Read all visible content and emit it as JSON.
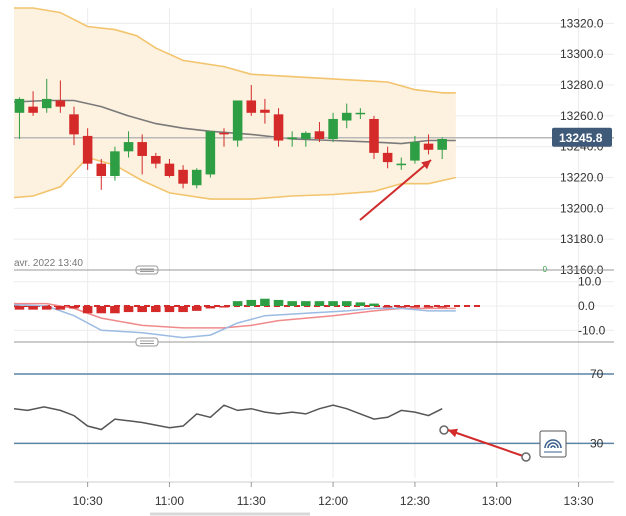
{
  "colors": {
    "up": "#2e9e44",
    "down": "#d42a2a",
    "band_fill": "#fdf1df",
    "band_line": "#f2c46d",
    "mid_line": "#7a7a7a",
    "price_line": "#b9b9b9",
    "price_badge": "#3f5a78",
    "macd_line": "#9bbbe3",
    "signal_line": "#f08a8a",
    "rsi_line": "#555555",
    "rsi_level": "#5b84a5",
    "annotation": "#d12b2b",
    "grid": "#ececec",
    "axis_text": "#333333"
  },
  "header": {
    "date_label": "avr. 2022 13:40"
  },
  "current_price": {
    "label": "13245.8",
    "value": 13245.8
  },
  "corner_marker": "-0-",
  "icons": {
    "drawing_tool": "rainbow-drawing-icon",
    "collapse_price": "collapse-handle-icon",
    "collapse_macd": "collapse-handle-icon"
  },
  "chart_data": [
    {
      "type": "candlestick",
      "panel": "price",
      "x_ticks": [
        "10:30",
        "11:00",
        "11:30",
        "12:00",
        "12:30",
        "13:00",
        "13:30"
      ],
      "x_tick_minutes": [
        630,
        660,
        690,
        720,
        750,
        780,
        810
      ],
      "xlim_minutes": [
        603,
        823
      ],
      "ylim": [
        13160,
        13330
      ],
      "y_ticks": [
        13160,
        13180,
        13200,
        13220,
        13240,
        13260,
        13280,
        13300,
        13320
      ],
      "y_tick_labels": [
        "13160.0",
        "13180.0",
        "13200.0",
        "13220.0",
        "13240.0",
        "13260.0",
        "13280.0",
        "13300.0",
        "13320.0"
      ],
      "candles": [
        {
          "t": 605,
          "o": 13262,
          "h": 13272,
          "l": 13245,
          "c": 13271
        },
        {
          "t": 610,
          "o": 13266,
          "h": 13276,
          "l": 13260,
          "c": 13262
        },
        {
          "t": 615,
          "o": 13265,
          "h": 13284,
          "l": 13262,
          "c": 13271
        },
        {
          "t": 620,
          "o": 13270,
          "h": 13283,
          "l": 13262,
          "c": 13266
        },
        {
          "t": 625,
          "o": 13261,
          "h": 13266,
          "l": 13241,
          "c": 13248
        },
        {
          "t": 630,
          "o": 13247,
          "h": 13252,
          "l": 13225,
          "c": 13229
        },
        {
          "t": 635,
          "o": 13229,
          "h": 13232,
          "l": 13212,
          "c": 13221
        },
        {
          "t": 640,
          "o": 13221,
          "h": 13240,
          "l": 13218,
          "c": 13237
        },
        {
          "t": 645,
          "o": 13237,
          "h": 13250,
          "l": 13233,
          "c": 13243
        },
        {
          "t": 650,
          "o": 13243,
          "h": 13248,
          "l": 13222,
          "c": 13234
        },
        {
          "t": 655,
          "o": 13234,
          "h": 13236,
          "l": 13226,
          "c": 13229
        },
        {
          "t": 660,
          "o": 13229,
          "h": 13232,
          "l": 13220,
          "c": 13221
        },
        {
          "t": 665,
          "o": 13225,
          "h": 13228,
          "l": 13213,
          "c": 13216
        },
        {
          "t": 670,
          "o": 13215,
          "h": 13226,
          "l": 13213,
          "c": 13225
        },
        {
          "t": 675,
          "o": 13222,
          "h": 13250,
          "l": 13220,
          "c": 13250
        },
        {
          "t": 680,
          "o": 13249,
          "h": 13252,
          "l": 13240,
          "c": 13248
        },
        {
          "t": 685,
          "o": 13244,
          "h": 13270,
          "l": 13240,
          "c": 13270
        },
        {
          "t": 690,
          "o": 13270,
          "h": 13280,
          "l": 13260,
          "c": 13262
        },
        {
          "t": 695,
          "o": 13264,
          "h": 13271,
          "l": 13255,
          "c": 13262
        },
        {
          "t": 700,
          "o": 13261,
          "h": 13265,
          "l": 13240,
          "c": 13244
        },
        {
          "t": 705,
          "o": 13245,
          "h": 13250,
          "l": 13240,
          "c": 13246
        },
        {
          "t": 710,
          "o": 13245,
          "h": 13250,
          "l": 13240,
          "c": 13249
        },
        {
          "t": 715,
          "o": 13250,
          "h": 13256,
          "l": 13243,
          "c": 13245
        },
        {
          "t": 720,
          "o": 13245,
          "h": 13262,
          "l": 13243,
          "c": 13258
        },
        {
          "t": 725,
          "o": 13257,
          "h": 13268,
          "l": 13252,
          "c": 13262
        },
        {
          "t": 730,
          "o": 13262,
          "h": 13265,
          "l": 13258,
          "c": 13262
        },
        {
          "t": 735,
          "o": 13258,
          "h": 13260,
          "l": 13232,
          "c": 13236
        },
        {
          "t": 740,
          "o": 13236,
          "h": 13240,
          "l": 13226,
          "c": 13230
        },
        {
          "t": 745,
          "o": 13228,
          "h": 13233,
          "l": 13225,
          "c": 13229
        },
        {
          "t": 750,
          "o": 13231,
          "h": 13247,
          "l": 13229,
          "c": 13243
        },
        {
          "t": 755,
          "o": 13242,
          "h": 13248,
          "l": 13235,
          "c": 13238
        },
        {
          "t": 760,
          "o": 13238,
          "h": 13246,
          "l": 13232,
          "c": 13245
        }
      ],
      "bollinger_upper": [
        [
          603,
          13330
        ],
        [
          610,
          13330
        ],
        [
          620,
          13327
        ],
        [
          630,
          13318
        ],
        [
          640,
          13316
        ],
        [
          648,
          13312
        ],
        [
          655,
          13304
        ],
        [
          665,
          13296
        ],
        [
          680,
          13292
        ],
        [
          690,
          13287
        ],
        [
          700,
          13286
        ],
        [
          720,
          13284
        ],
        [
          740,
          13282
        ],
        [
          750,
          13277
        ],
        [
          760,
          13275
        ],
        [
          765,
          13275
        ]
      ],
      "bollinger_middle": [
        [
          603,
          13269
        ],
        [
          615,
          13270
        ],
        [
          625,
          13270
        ],
        [
          635,
          13266
        ],
        [
          645,
          13260
        ],
        [
          655,
          13255
        ],
        [
          665,
          13252
        ],
        [
          675,
          13250
        ],
        [
          690,
          13248
        ],
        [
          705,
          13245
        ],
        [
          720,
          13244
        ],
        [
          735,
          13243
        ],
        [
          745,
          13242
        ],
        [
          755,
          13244
        ],
        [
          765,
          13244
        ]
      ],
      "bollinger_lower": [
        [
          603,
          13207
        ],
        [
          610,
          13208
        ],
        [
          620,
          13214
        ],
        [
          630,
          13233
        ],
        [
          640,
          13228
        ],
        [
          650,
          13218
        ],
        [
          660,
          13210
        ],
        [
          675,
          13206
        ],
        [
          690,
          13206
        ],
        [
          705,
          13208
        ],
        [
          720,
          13209
        ],
        [
          735,
          13211
        ],
        [
          745,
          13216
        ],
        [
          755,
          13216
        ],
        [
          765,
          13220
        ]
      ],
      "current_price": 13245.8
    },
    {
      "type": "macd",
      "panel": "macd",
      "ylim": [
        -14,
        14
      ],
      "y_ticks": [
        10,
        0,
        -10
      ],
      "y_tick_labels": [
        "10.0",
        "0.0",
        "-10.0"
      ],
      "histogram": [
        {
          "t": 605,
          "v": -1.5
        },
        {
          "t": 610,
          "v": -1.5
        },
        {
          "t": 615,
          "v": -1.5
        },
        {
          "t": 620,
          "v": -1.5
        },
        {
          "t": 625,
          "v": -1
        },
        {
          "t": 630,
          "v": -3
        },
        {
          "t": 635,
          "v": -3
        },
        {
          "t": 640,
          "v": -3
        },
        {
          "t": 645,
          "v": -2.5
        },
        {
          "t": 650,
          "v": -2.5
        },
        {
          "t": 655,
          "v": -2.5
        },
        {
          "t": 660,
          "v": -2.5
        },
        {
          "t": 665,
          "v": -2.5
        },
        {
          "t": 670,
          "v": -2
        },
        {
          "t": 675,
          "v": -1
        },
        {
          "t": 680,
          "v": -0.5
        },
        {
          "t": 685,
          "v": 2
        },
        {
          "t": 690,
          "v": 2.5
        },
        {
          "t": 695,
          "v": 3
        },
        {
          "t": 700,
          "v": 2.5
        },
        {
          "t": 705,
          "v": 2
        },
        {
          "t": 710,
          "v": 2
        },
        {
          "t": 715,
          "v": 2
        },
        {
          "t": 720,
          "v": 2
        },
        {
          "t": 725,
          "v": 2
        },
        {
          "t": 730,
          "v": 1.5
        },
        {
          "t": 735,
          "v": 1
        },
        {
          "t": 740,
          "v": -0.5
        },
        {
          "t": 745,
          "v": -0.5
        },
        {
          "t": 750,
          "v": -0.5
        },
        {
          "t": 755,
          "v": -0.5
        },
        {
          "t": 760,
          "v": -0.5
        }
      ],
      "macd_line": [
        [
          603,
          0.5
        ],
        [
          615,
          0
        ],
        [
          625,
          -4
        ],
        [
          635,
          -10
        ],
        [
          650,
          -11
        ],
        [
          665,
          -13
        ],
        [
          675,
          -12
        ],
        [
          685,
          -7
        ],
        [
          695,
          -4
        ],
        [
          710,
          -3
        ],
        [
          725,
          -2
        ],
        [
          735,
          -1
        ],
        [
          745,
          -1
        ],
        [
          755,
          -2
        ],
        [
          765,
          -2
        ]
      ],
      "signal_line": [
        [
          603,
          1
        ],
        [
          615,
          1
        ],
        [
          625,
          -1
        ],
        [
          635,
          -5
        ],
        [
          650,
          -8
        ],
        [
          665,
          -9
        ],
        [
          680,
          -9
        ],
        [
          690,
          -8
        ],
        [
          700,
          -6
        ],
        [
          720,
          -4
        ],
        [
          735,
          -2
        ],
        [
          745,
          -1
        ],
        [
          755,
          -1
        ],
        [
          765,
          -1
        ]
      ]
    },
    {
      "type": "line",
      "panel": "rsi",
      "ylim": [
        10,
        85
      ],
      "y_ticks": [
        70,
        30
      ],
      "y_tick_labels": [
        "70",
        "30"
      ],
      "levels": [
        70,
        30
      ],
      "series": [
        {
          "values": [
            [
              603,
              50
            ],
            [
              608,
              49
            ],
            [
              614,
              51
            ],
            [
              620,
              49
            ],
            [
              625,
              46
            ],
            [
              630,
              40
            ],
            [
              635,
              38
            ],
            [
              640,
              44
            ],
            [
              645,
              43
            ],
            [
              650,
              42
            ],
            [
              660,
              39
            ],
            [
              665,
              40
            ],
            [
              670,
              47
            ],
            [
              675,
              45
            ],
            [
              680,
              52
            ],
            [
              685,
              49
            ],
            [
              690,
              50
            ],
            [
              695,
              48
            ],
            [
              700,
              47
            ],
            [
              705,
              48
            ],
            [
              710,
              47
            ],
            [
              715,
              50
            ],
            [
              720,
              52
            ],
            [
              725,
              50
            ],
            [
              730,
              47
            ],
            [
              735,
              44
            ],
            [
              740,
              45
            ],
            [
              745,
              49
            ],
            [
              750,
              48
            ],
            [
              755,
              46
            ],
            [
              760,
              50
            ]
          ]
        }
      ]
    }
  ]
}
